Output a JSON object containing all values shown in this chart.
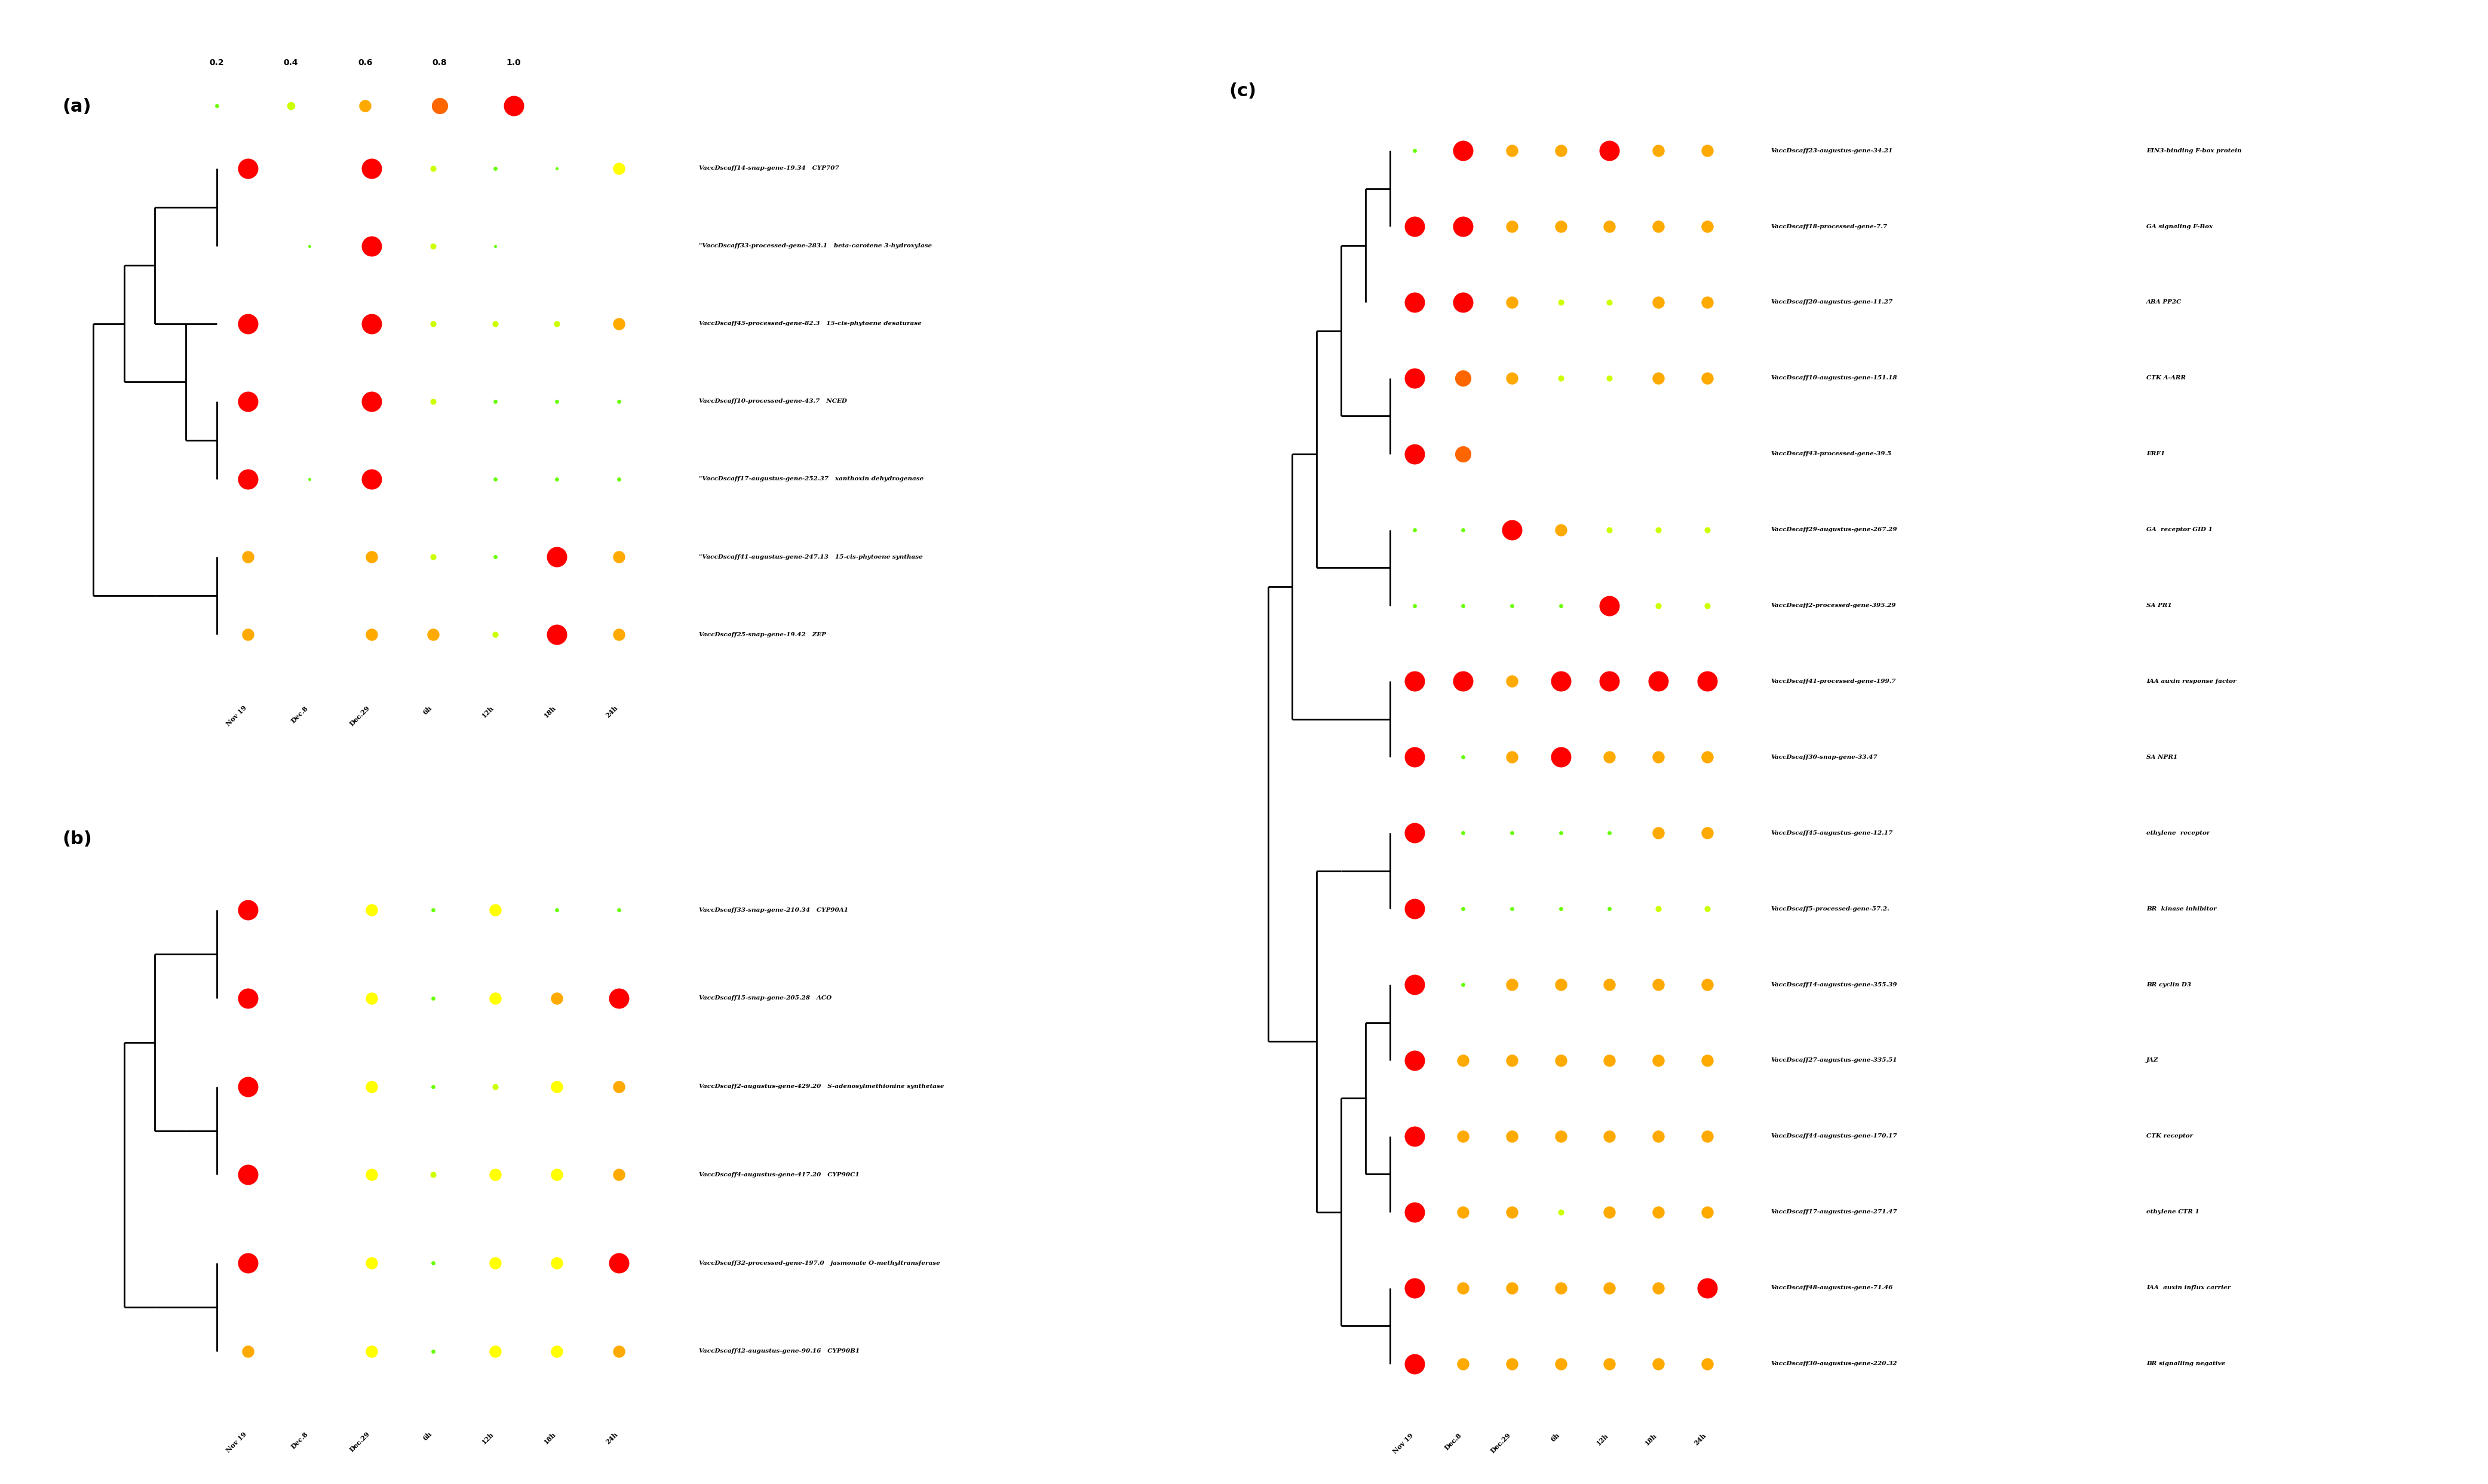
{
  "legend_sizes": [
    0.2,
    0.4,
    0.6,
    0.8,
    1.0
  ],
  "legend_colors": [
    "#66ff00",
    "#ccff00",
    "#ffaa00",
    "#ff6600",
    "#ff0000"
  ],
  "timepoints": [
    "Nov 19",
    "Dec.8",
    "Dec.29",
    "6h",
    "12h",
    "18h",
    "24h"
  ],
  "panel_a_genes": [
    "VaccDscaff14-snap-gene-19.34",
    "\"VaccDscaff33-processed-gene-283.1",
    "VaccDscaff45-processed-gene-82.3",
    "VaccDscaff10-processed-gene-43.7",
    "\"VaccDscaff17-augustus-gene-252.37",
    "\"VaccDscaff41-augustus-gene-247.13",
    "VaccDscaff25-snap-gene-19.42"
  ],
  "panel_a_annotations": [
    "CYP707",
    "beta-carotene 3-hydroxylase",
    "15-cis-phytoene desaturase",
    "NCED",
    "xanthoxin dehydrogenase",
    "15-cis-phytoene synthase",
    "ZEP"
  ],
  "panel_a_data": [
    [
      1.0,
      0.0,
      1.0,
      0.3,
      0.2,
      0.1,
      0.6
    ],
    [
      0.0,
      0.2,
      1.0,
      0.3,
      0.1,
      0.0,
      0.0
    ],
    [
      1.0,
      0.0,
      1.0,
      0.3,
      0.2,
      0.3,
      0.6
    ],
    [
      1.0,
      0.0,
      1.0,
      0.3,
      0.2,
      0.2,
      0.2
    ],
    [
      1.0,
      0.1,
      1.0,
      0.0,
      0.2,
      0.2,
      0.2
    ],
    [
      0.6,
      0.0,
      0.6,
      0.3,
      0.2,
      1.0,
      0.6
    ],
    [
      0.6,
      0.0,
      0.6,
      0.6,
      0.2,
      1.0,
      0.6
    ]
  ],
  "panel_a_colors": [
    [
      "#ff0000",
      "#000000",
      "#ff0000",
      "#ccff00",
      "#66ff00",
      "#66ff00",
      "#ffff00"
    ],
    [
      "#000000",
      "#66ff00",
      "#ff0000",
      "#ccff00",
      "#66ff00",
      "#000000",
      "#000000"
    ],
    [
      "#ff0000",
      "#000000",
      "#ff0000",
      "#ccff00",
      "#ccff00",
      "#ccff00",
      "#ffaa00"
    ],
    [
      "#ff0000",
      "#000000",
      "#ff0000",
      "#ccff00",
      "#66ff00",
      "#66ff00",
      "#66ff00"
    ],
    [
      "#ff0000",
      "#66ff00",
      "#ff0000",
      "#000000",
      "#66ff00",
      "#66ff00",
      "#66ff00"
    ],
    [
      "#ffaa00",
      "#000000",
      "#ffaa00",
      "#ccff00",
      "#66ff00",
      "#ff0000",
      "#ffaa00"
    ],
    [
      "#ffaa00",
      "#000000",
      "#ffaa00",
      "#ffaa00",
      "#ccff00",
      "#ff0000",
      "#ffaa00"
    ]
  ],
  "panel_a_sizes": [
    [
      1.0,
      0.0,
      1.0,
      0.3,
      0.2,
      0.15,
      0.6
    ],
    [
      0.0,
      0.15,
      1.0,
      0.3,
      0.15,
      0.0,
      0.0
    ],
    [
      1.0,
      0.0,
      1.0,
      0.3,
      0.3,
      0.3,
      0.6
    ],
    [
      1.0,
      0.0,
      1.0,
      0.3,
      0.2,
      0.2,
      0.2
    ],
    [
      1.0,
      0.15,
      1.0,
      0.0,
      0.2,
      0.2,
      0.2
    ],
    [
      0.6,
      0.0,
      0.6,
      0.3,
      0.2,
      1.0,
      0.6
    ],
    [
      0.6,
      0.0,
      0.6,
      0.6,
      0.3,
      1.0,
      0.6
    ]
  ],
  "panel_b_genes": [
    "VaccDscaff33-snap-gene-210.34",
    "VaccDscaff15-snap-gene-205.28",
    "VaccDscaff2-augustus-gene-429.20",
    "VaccDscaff4-augustus-gene-417.20",
    "VaccDscaff32-processed-gene-197.0",
    "VaccDscaff42-augustus-gene-90.16"
  ],
  "panel_b_annotations": [
    "CYP90A1",
    "ACO",
    "S-adenosylmethionine synthetase",
    "CYP90C1",
    "jasmonate O-methyltransferase",
    "CYP90B1"
  ],
  "panel_b_colors": [
    [
      "#ff0000",
      "#000000",
      "#ffff00",
      "#66ff00",
      "#ffff00",
      "#66ff00",
      "#66ff00"
    ],
    [
      "#ff0000",
      "#000000",
      "#ffff00",
      "#66ff00",
      "#ffff00",
      "#ffaa00",
      "#ff0000"
    ],
    [
      "#ff0000",
      "#000000",
      "#ffff00",
      "#66ff00",
      "#ccff00",
      "#ffff00",
      "#ffaa00"
    ],
    [
      "#ff0000",
      "#000000",
      "#ffff00",
      "#ccff00",
      "#ffff00",
      "#ffff00",
      "#ffaa00"
    ],
    [
      "#ff0000",
      "#000000",
      "#ffff00",
      "#66ff00",
      "#ffff00",
      "#ffff00",
      "#ff0000"
    ],
    [
      "#ffaa00",
      "#000000",
      "#ffff00",
      "#66ff00",
      "#ffff00",
      "#ffff00",
      "#ffaa00"
    ]
  ],
  "panel_b_sizes": [
    [
      1.0,
      0.0,
      0.6,
      0.2,
      0.6,
      0.2,
      0.2
    ],
    [
      1.0,
      0.0,
      0.6,
      0.2,
      0.6,
      0.6,
      1.0
    ],
    [
      1.0,
      0.0,
      0.6,
      0.2,
      0.3,
      0.6,
      0.6
    ],
    [
      1.0,
      0.0,
      0.6,
      0.3,
      0.6,
      0.6,
      0.6
    ],
    [
      1.0,
      0.0,
      0.6,
      0.2,
      0.6,
      0.6,
      1.0
    ],
    [
      0.6,
      0.0,
      0.6,
      0.2,
      0.6,
      0.6,
      0.6
    ]
  ],
  "panel_c_genes": [
    "VaccDscaff23-augustus-gene-34.21",
    "VaccDscaff18-processed-gene-7.7",
    "VaccDscaff20-augustus-gene-11.27",
    "VaccDscaff10-augustus-gene-151.18",
    "VaccDscaff43-processed-gene-39.5",
    "VaccDscaff29-augustus-gene-267.29",
    "VaccDscaff2-processed-gene-395.29",
    "VaccDscaff41-processed-gene-199.7",
    "VaccDscaff30-snap-gene-33.47",
    "VaccDscaff45-augustus-gene-12.17",
    "VaccDscaff5-processed-gene-57.2.",
    "VaccDscaff14-augustus-gene-355.39",
    "VaccDscaff27-augustus-gene-335.51",
    "VaccDscaff44-augustus-gene-170.17",
    "VaccDscaff17-augustus-gene-271.47",
    "VaccDscaff48-augustus-gene-71.46",
    "VaccDscaff30-augustus-gene-220.32"
  ],
  "panel_c_annotations": [
    "EIN3-binding F-box protein",
    "GA signaling F-Box",
    "ABA PP2C",
    "CTK A-ARR",
    "ERF1",
    "GA  receptor GID 1",
    "SA PR1",
    "IAA auxin response factor",
    "SA NPR1",
    "ethylene  receptor",
    "BR  kinase inhibitor",
    "BR cyclin D3",
    "JAZ",
    "CTK receptor",
    "ethylene CTR 1",
    "IAA  auxin influx carrier",
    "BR signalling negative"
  ],
  "panel_c_colors": [
    [
      "#66ff00",
      "#ff0000",
      "#ffaa00",
      "#ffaa00",
      "#ff0000",
      "#ffaa00",
      "#ffaa00"
    ],
    [
      "#ff0000",
      "#ff0000",
      "#ffaa00",
      "#ffaa00",
      "#ffaa00",
      "#ffaa00",
      "#ffaa00"
    ],
    [
      "#ff0000",
      "#ff0000",
      "#ffaa00",
      "#ccff00",
      "#ccff00",
      "#ffaa00",
      "#ffaa00"
    ],
    [
      "#ff0000",
      "#ff6600",
      "#ffaa00",
      "#ccff00",
      "#ccff00",
      "#ffaa00",
      "#ffaa00"
    ],
    [
      "#ff0000",
      "#ff6600",
      "#000000",
      "#000000",
      "#000000",
      "#000000",
      "#000000"
    ],
    [
      "#66ff00",
      "#66ff00",
      "#ff0000",
      "#ffaa00",
      "#ccff00",
      "#ccff00",
      "#ccff00"
    ],
    [
      "#66ff00",
      "#66ff00",
      "#66ff00",
      "#66ff00",
      "#ff0000",
      "#ccff00",
      "#ccff00"
    ],
    [
      "#ff0000",
      "#ff0000",
      "#ffaa00",
      "#ff0000",
      "#ff0000",
      "#ff0000",
      "#ff0000"
    ],
    [
      "#ff0000",
      "#66ff00",
      "#ffaa00",
      "#ff0000",
      "#ffaa00",
      "#ffaa00",
      "#ffaa00"
    ],
    [
      "#ff0000",
      "#66ff00",
      "#66ff00",
      "#66ff00",
      "#66ff00",
      "#ffaa00",
      "#ffaa00"
    ],
    [
      "#ff0000",
      "#66ff00",
      "#66ff00",
      "#66ff00",
      "#66ff00",
      "#ccff00",
      "#ccff00"
    ],
    [
      "#ff0000",
      "#66ff00",
      "#ffaa00",
      "#ffaa00",
      "#ffaa00",
      "#ffaa00",
      "#ffaa00"
    ],
    [
      "#ff0000",
      "#ffaa00",
      "#ffaa00",
      "#ffaa00",
      "#ffaa00",
      "#ffaa00",
      "#ffaa00"
    ],
    [
      "#ff0000",
      "#ffaa00",
      "#ffaa00",
      "#ffaa00",
      "#ffaa00",
      "#ffaa00",
      "#ffaa00"
    ],
    [
      "#ff0000",
      "#ffaa00",
      "#ffaa00",
      "#ccff00",
      "#ffaa00",
      "#ffaa00",
      "#ffaa00"
    ],
    [
      "#ff0000",
      "#ffaa00",
      "#ffaa00",
      "#ffaa00",
      "#ffaa00",
      "#ffaa00",
      "#ff0000"
    ],
    [
      "#ff0000",
      "#ffaa00",
      "#ffaa00",
      "#ffaa00",
      "#ffaa00",
      "#ffaa00",
      "#ffaa00"
    ]
  ],
  "panel_c_sizes": [
    [
      0.2,
      1.0,
      0.6,
      0.6,
      1.0,
      0.6,
      0.6
    ],
    [
      1.0,
      1.0,
      0.6,
      0.6,
      0.6,
      0.6,
      0.6
    ],
    [
      1.0,
      1.0,
      0.6,
      0.3,
      0.3,
      0.6,
      0.6
    ],
    [
      1.0,
      0.8,
      0.6,
      0.3,
      0.3,
      0.6,
      0.6
    ],
    [
      1.0,
      0.8,
      0.0,
      0.0,
      0.0,
      0.0,
      0.0
    ],
    [
      0.2,
      0.2,
      1.0,
      0.6,
      0.3,
      0.3,
      0.3
    ],
    [
      0.2,
      0.2,
      0.2,
      0.2,
      1.0,
      0.3,
      0.3
    ],
    [
      1.0,
      1.0,
      0.6,
      1.0,
      1.0,
      1.0,
      1.0
    ],
    [
      1.0,
      0.2,
      0.6,
      1.0,
      0.6,
      0.6,
      0.6
    ],
    [
      1.0,
      0.2,
      0.2,
      0.2,
      0.2,
      0.6,
      0.6
    ],
    [
      1.0,
      0.2,
      0.2,
      0.2,
      0.2,
      0.3,
      0.3
    ],
    [
      1.0,
      0.2,
      0.6,
      0.6,
      0.6,
      0.6,
      0.6
    ],
    [
      1.0,
      0.6,
      0.6,
      0.6,
      0.6,
      0.6,
      0.6
    ],
    [
      1.0,
      0.6,
      0.6,
      0.6,
      0.6,
      0.6,
      0.6
    ],
    [
      1.0,
      0.6,
      0.6,
      0.3,
      0.6,
      0.6,
      0.6
    ],
    [
      1.0,
      0.6,
      0.6,
      0.6,
      0.6,
      0.6,
      1.0
    ],
    [
      1.0,
      0.6,
      0.6,
      0.6,
      0.6,
      0.6,
      0.6
    ]
  ]
}
